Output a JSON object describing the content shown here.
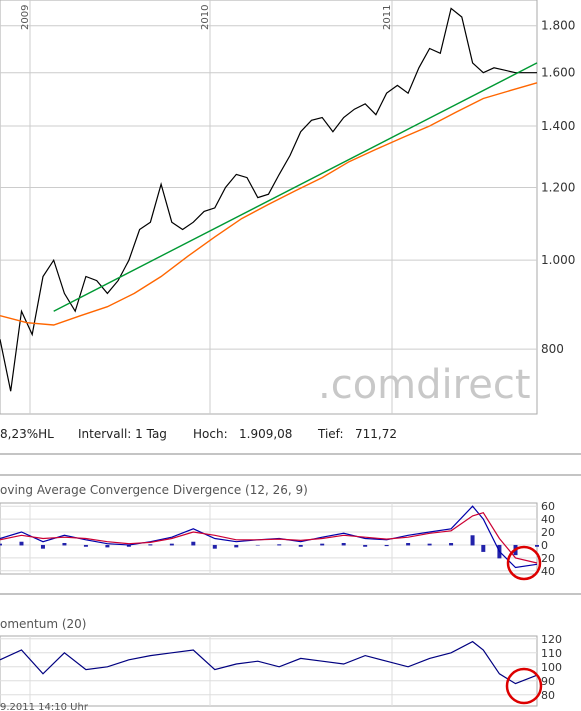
{
  "chart_data": [
    {
      "type": "line",
      "scale": "log",
      "ylim": [
        680,
        1920
      ],
      "yticks": [
        800,
        1000,
        1200,
        1400,
        1600,
        1800
      ],
      "ytick_labels": [
        "800",
        "1.000",
        "1.200",
        "1.400",
        "1.600",
        "1.800"
      ],
      "year_labels": [
        "2009",
        "2010",
        "2011"
      ],
      "series": [
        {
          "color": "#000000",
          "x": [
            0,
            0.02,
            0.04,
            0.06,
            0.08,
            0.1,
            0.12,
            0.14,
            0.16,
            0.18,
            0.2,
            0.22,
            0.24,
            0.26,
            0.28,
            0.3,
            0.32,
            0.34,
            0.36,
            0.38,
            0.4,
            0.42,
            0.44,
            0.46,
            0.48,
            0.5,
            0.52,
            0.54,
            0.56,
            0.58,
            0.6,
            0.62,
            0.64,
            0.66,
            0.68,
            0.7,
            0.72,
            0.74,
            0.76,
            0.78,
            0.8,
            0.82,
            0.84,
            0.86,
            0.88,
            0.9,
            0.92,
            0.94,
            0.96,
            0.98,
            1.0
          ],
          "y": [
            820,
            720,
            880,
            830,
            960,
            1000,
            920,
            880,
            960,
            950,
            920,
            950,
            1000,
            1080,
            1100,
            1210,
            1100,
            1080,
            1100,
            1130,
            1140,
            1200,
            1240,
            1230,
            1170,
            1180,
            1240,
            1300,
            1380,
            1420,
            1430,
            1380,
            1430,
            1460,
            1480,
            1440,
            1520,
            1550,
            1520,
            1620,
            1700,
            1680,
            1880,
            1840,
            1640,
            1600,
            1620,
            1610,
            1600,
            1600,
            1600
          ]
        },
        {
          "color": "#ff6600",
          "x": [
            0,
            0.05,
            0.1,
            0.15,
            0.2,
            0.25,
            0.3,
            0.35,
            0.4,
            0.45,
            0.5,
            0.55,
            0.6,
            0.65,
            0.7,
            0.75,
            0.8,
            0.85,
            0.9,
            0.95,
            1.0
          ],
          "y": [
            870,
            855,
            850,
            870,
            890,
            920,
            960,
            1010,
            1060,
            1110,
            1150,
            1190,
            1230,
            1280,
            1320,
            1360,
            1400,
            1450,
            1500,
            1530,
            1560
          ]
        },
        {
          "color": "#009933",
          "x": [
            0.1,
            1.0
          ],
          "y": [
            880,
            1640
          ]
        }
      ]
    },
    {
      "type": "line",
      "title": "oving Average Convergence Divergence (12, 26, 9)",
      "ylim": [
        -45,
        65
      ],
      "yticks": [
        60,
        40,
        20,
        0,
        -20,
        -40
      ],
      "ytick_labels": [
        "60",
        "40",
        "20",
        "0",
        "20",
        "40"
      ],
      "series": [
        {
          "color": "#0000aa",
          "x": [
            0,
            0.04,
            0.08,
            0.12,
            0.16,
            0.2,
            0.24,
            0.28,
            0.32,
            0.36,
            0.4,
            0.44,
            0.48,
            0.52,
            0.56,
            0.6,
            0.64,
            0.68,
            0.72,
            0.76,
            0.8,
            0.84,
            0.88,
            0.9,
            0.93,
            0.96,
            1.0
          ],
          "y": [
            10,
            20,
            5,
            15,
            8,
            2,
            0,
            5,
            12,
            25,
            10,
            5,
            8,
            10,
            5,
            12,
            18,
            10,
            8,
            15,
            20,
            25,
            60,
            40,
            -10,
            -35,
            -30
          ]
        },
        {
          "color": "#cc0033",
          "x": [
            0,
            0.04,
            0.08,
            0.12,
            0.16,
            0.2,
            0.24,
            0.28,
            0.32,
            0.36,
            0.4,
            0.44,
            0.48,
            0.52,
            0.56,
            0.6,
            0.64,
            0.68,
            0.72,
            0.76,
            0.8,
            0.84,
            0.88,
            0.9,
            0.93,
            0.96,
            1.0
          ],
          "y": [
            8,
            15,
            10,
            12,
            10,
            5,
            2,
            4,
            10,
            20,
            15,
            8,
            8,
            9,
            7,
            10,
            15,
            12,
            9,
            12,
            18,
            22,
            45,
            50,
            10,
            -20,
            -28
          ]
        }
      ]
    },
    {
      "type": "line",
      "title": "omentum (20)",
      "ylim": [
        72,
        122
      ],
      "yticks": [
        120,
        110,
        100,
        90,
        80
      ],
      "ytick_labels": [
        "120",
        "110",
        "100",
        "90",
        "80"
      ],
      "series": [
        {
          "color": "#000080",
          "x": [
            0,
            0.04,
            0.08,
            0.12,
            0.16,
            0.2,
            0.24,
            0.28,
            0.32,
            0.36,
            0.4,
            0.44,
            0.48,
            0.52,
            0.56,
            0.6,
            0.64,
            0.68,
            0.72,
            0.76,
            0.8,
            0.84,
            0.88,
            0.9,
            0.93,
            0.96,
            1.0
          ],
          "y": [
            105,
            112,
            95,
            110,
            98,
            100,
            105,
            108,
            110,
            112,
            98,
            102,
            104,
            100,
            106,
            104,
            102,
            108,
            104,
            100,
            106,
            110,
            118,
            112,
            95,
            88,
            94
          ]
        }
      ]
    }
  ],
  "info": {
    "hl": "8,23%HL",
    "interval": "Intervall: 1 Tag",
    "high_label": "Hoch:",
    "high_value": "1.909,08",
    "low_label": "Tief:",
    "low_value": "711,72"
  },
  "watermark": ".comdirect",
  "footer_snippet": "9.2011 14:10 Uhr"
}
